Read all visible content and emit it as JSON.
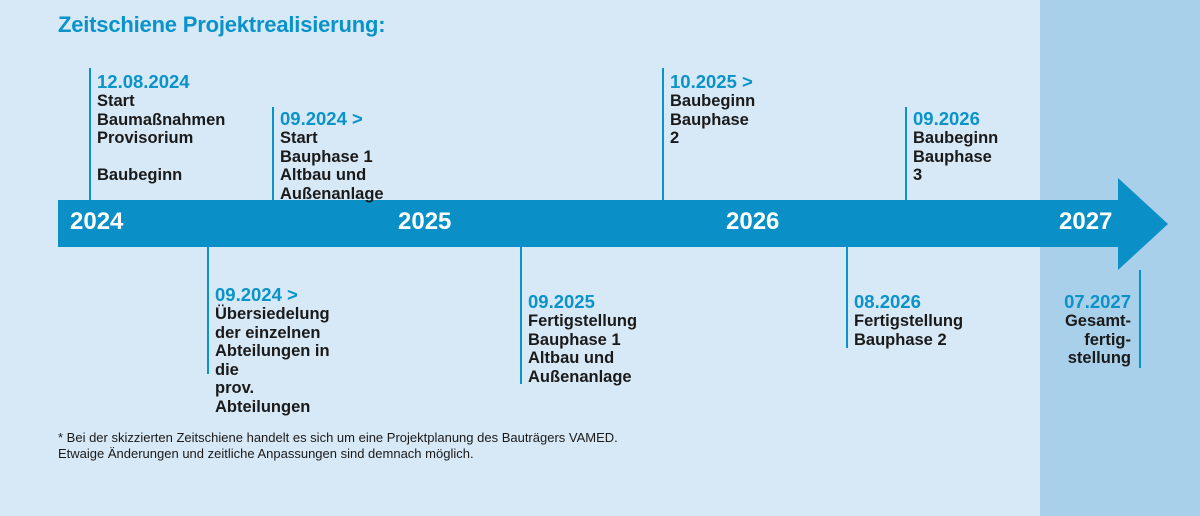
{
  "title": "Zeitschiene Projektrealisierung:",
  "years": [
    "2024",
    "2025",
    "2026",
    "2027"
  ],
  "events_top": [
    {
      "date": "12.08.2024",
      "desc": "Start\nBaumaßnahmen\nProvisorium\n\nBaubeginn"
    },
    {
      "date": "09.2024 >",
      "desc": "Start Bauphase 1\nAltbau und\nAußenanlage"
    },
    {
      "date": "10.2025 >",
      "desc": "Baubeginn\nBauphase 2"
    },
    {
      "date": "09.2026",
      "desc": "Baubeginn\nBauphase 3"
    }
  ],
  "events_bottom": [
    {
      "date": "09.2024 >",
      "desc": "Übersiedelung\nder einzelnen\nAbteilungen in die\nprov. Abteilungen"
    },
    {
      "date": "09.2025",
      "desc": "Fertigstellung\nBauphase 1\nAltbau und\nAußenanlage"
    },
    {
      "date": "08.2026",
      "desc": "Fertigstellung\nBauphase 2"
    },
    {
      "date": "07.2027",
      "desc": "Gesamt-\nfertig-\nstellung"
    }
  ],
  "footnote": "* Bei der skizzierten Zeitschiene handelt es sich um eine Projektplanung des Bauträgers VAMED.\n  Etwaige Änderungen und zeitliche Anpassungen sind demnach möglich.",
  "colors": {
    "background": "#d7e9f6",
    "band": "#a9d0ea",
    "accent": "#0a93c9",
    "arrow": "#0a8fc7"
  }
}
